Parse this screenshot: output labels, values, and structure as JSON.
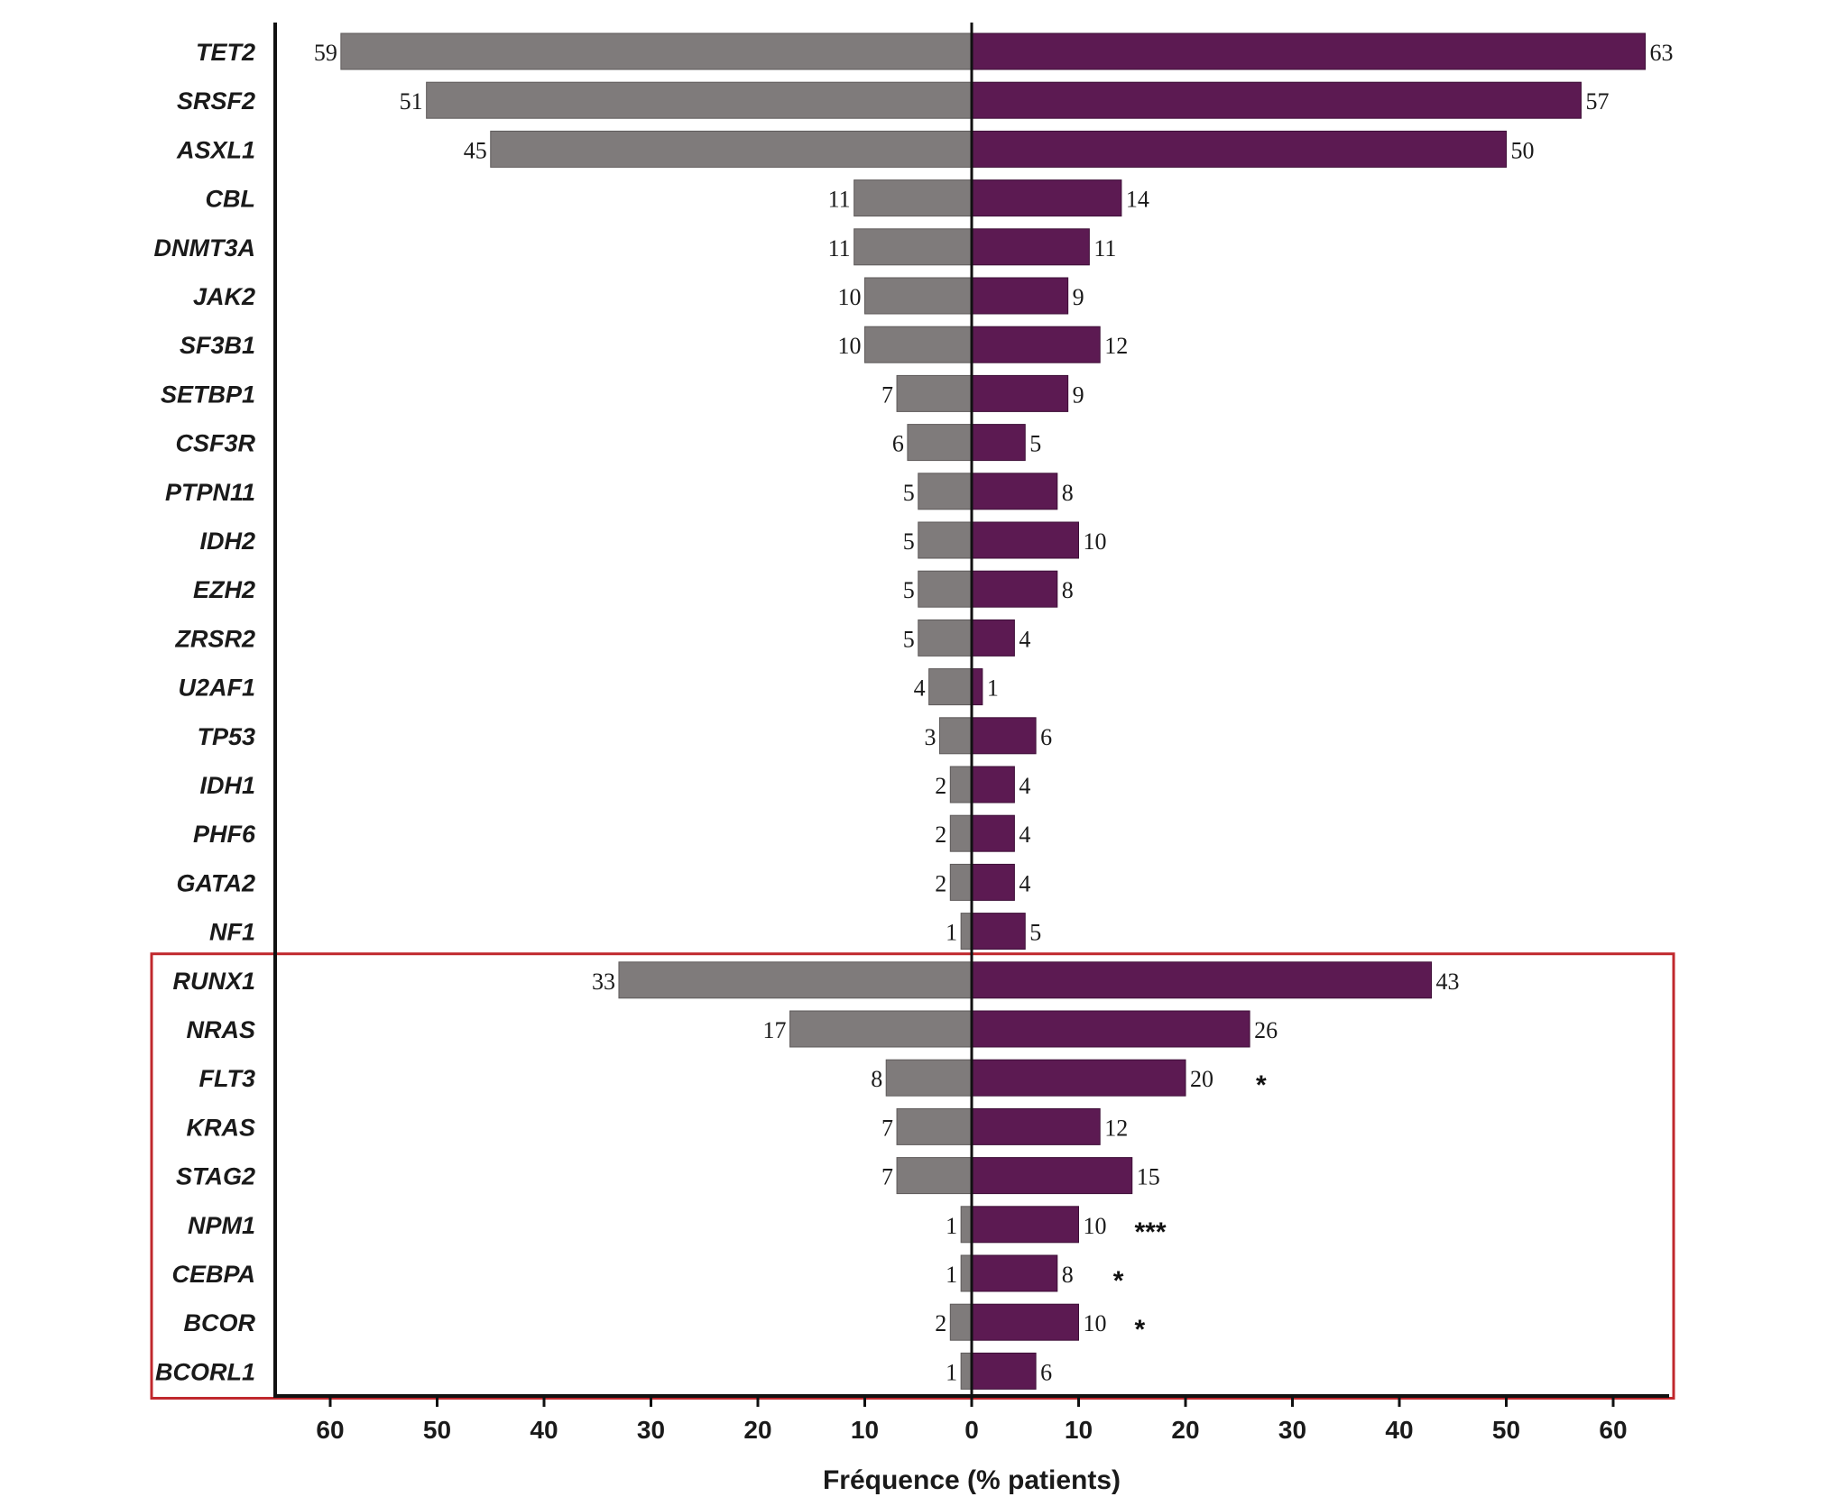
{
  "chart_data": {
    "type": "bar",
    "orientation": "horizontal-diverging",
    "categories": [
      "TET2",
      "SRSF2",
      "ASXL1",
      "CBL",
      "DNMT3A",
      "JAK2",
      "SF3B1",
      "SETBP1",
      "CSF3R",
      "PTPN11",
      "IDH2",
      "EZH2",
      "ZRSR2",
      "U2AF1",
      "TP53",
      "IDH1",
      "PHF6",
      "GATA2",
      "NF1",
      "RUNX1",
      "NRAS",
      "FLT3",
      "KRAS",
      "STAG2",
      "NPM1",
      "CEBPA",
      "BCOR",
      "BCORL1"
    ],
    "series": [
      {
        "name": "left",
        "color": "#7f7b7b",
        "values": [
          59,
          51,
          45,
          11,
          11,
          10,
          10,
          7,
          6,
          5,
          5,
          5,
          5,
          4,
          3,
          2,
          2,
          2,
          1,
          33,
          17,
          8,
          7,
          7,
          1,
          1,
          2,
          1
        ]
      },
      {
        "name": "right",
        "color": "#5c1a52",
        "values": [
          63,
          57,
          50,
          14,
          11,
          9,
          12,
          9,
          5,
          8,
          10,
          8,
          4,
          1,
          6,
          4,
          4,
          4,
          5,
          43,
          26,
          20,
          12,
          15,
          10,
          8,
          10,
          6
        ]
      }
    ],
    "significance": {
      "FLT3": "*",
      "NPM1": "***",
      "CEBPA": "*",
      "BCOR": "*"
    },
    "highlight": {
      "from": "RUNX1",
      "to": "BCORL1",
      "color": "#c0282d"
    },
    "xlabel": "Fréquence (% patients)",
    "xlim": [
      -65,
      65
    ],
    "ticks": [
      60,
      50,
      40,
      30,
      20,
      10,
      0,
      10,
      20,
      30,
      40,
      50,
      60
    ],
    "title": ""
  }
}
